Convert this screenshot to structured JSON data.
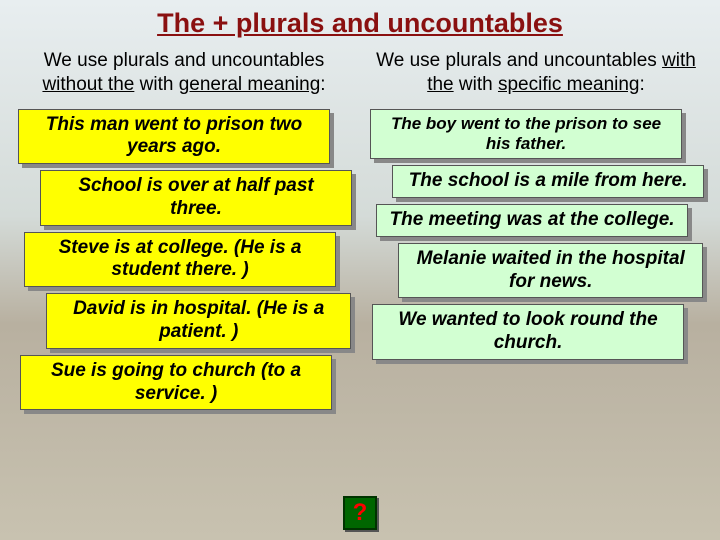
{
  "title": "The + plurals and uncountables",
  "left": {
    "intro_pre": "We use plurals and uncountables ",
    "intro_mid": "without the",
    "intro_post": " with ",
    "intro_last": "general meaning",
    "intro_colon": ":",
    "examples": [
      "This man went to prison two years ago.",
      "School is over at half past three.",
      "Steve is at college. (He is a student there. )",
      "David is in hospital. (He is a patient. )",
      "Sue is going to church (to a service. )"
    ]
  },
  "right": {
    "intro_pre": "We use plurals and uncountables ",
    "intro_mid": "with the",
    "intro_post": " with ",
    "intro_last": "specific meaning",
    "intro_colon": ":",
    "examples": [
      "The boy went to the prison to see his father.",
      "The school is a mile from here.",
      "The meeting was at the college.",
      "Melanie waited in the hospital for news.",
      "We wanted to look round the church."
    ]
  },
  "qmark": "?",
  "colors": {
    "title": "#8a1010",
    "example_left_bg": "#ffff00",
    "example_right_bg": "#d2ffd2",
    "qbox_bg": "#006600",
    "qbox_text": "#ff0000"
  }
}
